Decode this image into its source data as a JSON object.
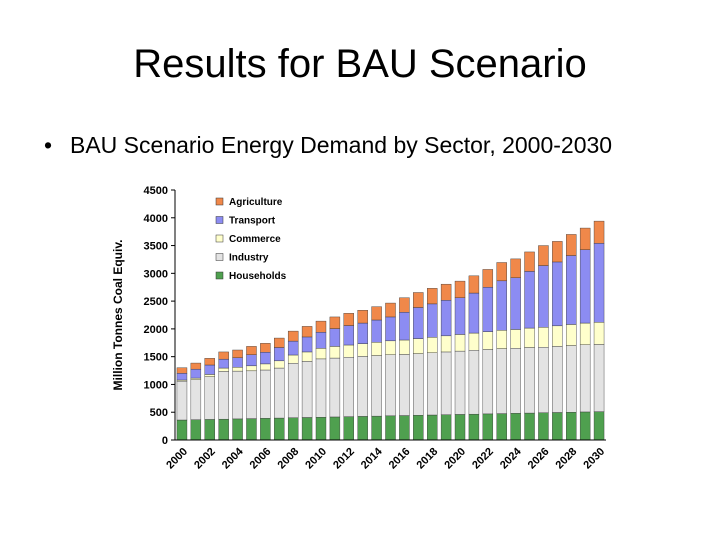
{
  "slide": {
    "title": "Results for BAU Scenario",
    "bullet": "BAU Scenario Energy Demand by Sector, 2000-2030"
  },
  "chart_data": {
    "type": "bar",
    "stacked": true,
    "title": "",
    "xlabel": "",
    "ylabel": "Million Tonnes Coal Equiv.",
    "ylim": [
      0,
      4500
    ],
    "yticks": [
      0,
      500,
      1000,
      1500,
      2000,
      2500,
      3000,
      3500,
      4000,
      4500
    ],
    "grid": false,
    "legend_position": "top-left",
    "categories": [
      "2000",
      "2001",
      "2002",
      "2003",
      "2004",
      "2005",
      "2006",
      "2007",
      "2008",
      "2009",
      "2010",
      "2011",
      "2012",
      "2013",
      "2014",
      "2015",
      "2016",
      "2017",
      "2018",
      "2019",
      "2020",
      "2021",
      "2022",
      "2023",
      "2024",
      "2025",
      "2026",
      "2027",
      "2028",
      "2029",
      "2030"
    ],
    "xtick_labels": [
      "2000",
      "2002",
      "2004",
      "2006",
      "2008",
      "2010",
      "2012",
      "2014",
      "2016",
      "2018",
      "2020",
      "2022",
      "2024",
      "2026",
      "2028",
      "2030"
    ],
    "series": [
      {
        "name": "Households",
        "color": "#4fa04f",
        "values": [
          360,
          365,
          370,
          375,
          380,
          385,
          390,
          395,
          400,
          405,
          410,
          415,
          420,
          425,
          430,
          435,
          440,
          445,
          450,
          455,
          460,
          465,
          470,
          475,
          480,
          485,
          490,
          495,
          500,
          505,
          510
        ]
      },
      {
        "name": "Industry",
        "color": "#e3e3e3",
        "values": [
          700,
          720,
          770,
          860,
          860,
          860,
          870,
          900,
          980,
          1010,
          1050,
          1060,
          1070,
          1080,
          1090,
          1100,
          1100,
          1110,
          1120,
          1130,
          1140,
          1150,
          1160,
          1170,
          1170,
          1180,
          1180,
          1190,
          1200,
          1210,
          1210
        ]
      },
      {
        "name": "Commerce",
        "color": "#ffffcc",
        "values": [
          20,
          30,
          40,
          60,
          70,
          90,
          110,
          130,
          150,
          170,
          190,
          210,
          220,
          230,
          240,
          250,
          260,
          270,
          280,
          290,
          300,
          310,
          320,
          330,
          340,
          350,
          360,
          370,
          380,
          390,
          400
        ]
      },
      {
        "name": "Transport",
        "color": "#8c8cf2",
        "values": [
          120,
          160,
          170,
          160,
          170,
          200,
          210,
          240,
          250,
          270,
          290,
          320,
          350,
          370,
          400,
          430,
          500,
          560,
          600,
          640,
          660,
          720,
          800,
          890,
          930,
          1020,
          1110,
          1150,
          1240,
          1320,
          1420
        ]
      },
      {
        "name": "Agriculture",
        "color": "#f0884a",
        "values": [
          100,
          110,
          120,
          130,
          140,
          150,
          160,
          170,
          180,
          190,
          200,
          210,
          220,
          230,
          240,
          250,
          260,
          270,
          280,
          290,
          300,
          310,
          320,
          330,
          340,
          350,
          360,
          370,
          380,
          390,
          400
        ]
      }
    ]
  }
}
